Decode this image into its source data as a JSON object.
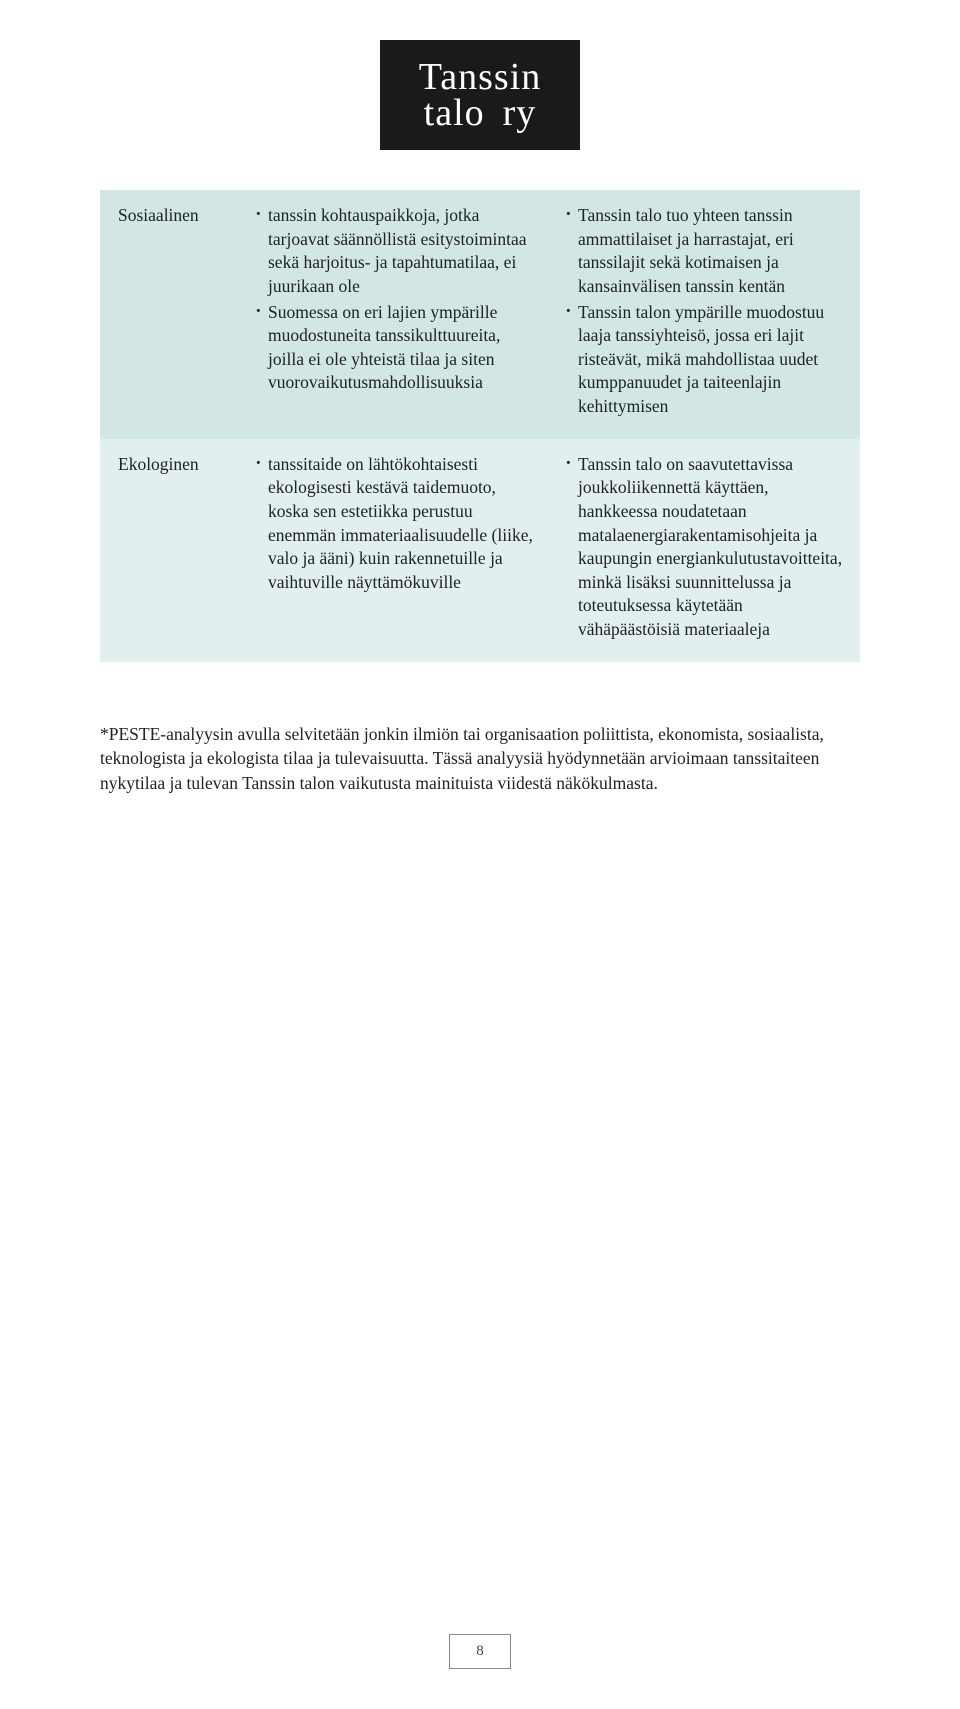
{
  "colors": {
    "logo_bg": "#1a1a1a",
    "logo_text": "#ffffff",
    "row_a_bg": "#d2e6e6",
    "row_b_bg": "#e2efef",
    "body_text": "#222222",
    "page_bg": "#ffffff",
    "pagenum_border": "#888888"
  },
  "typography": {
    "body_font": "Georgia, serif",
    "body_size_pt": 13,
    "logo_size_pt": 28
  },
  "logo": {
    "line1": "Tanssin",
    "line2_left": "talo",
    "line2_right": "ry"
  },
  "table": {
    "rows": [
      {
        "label": "Sosiaalinen",
        "col2": [
          "tanssin kohtauspaikkoja, jotka tarjoavat säännöllistä esitystoimintaa sekä harjoitus- ja tapahtumatilaa, ei juurikaan ole",
          "Suomessa on eri lajien ympärille muodostuneita tanssikulttuureita, joilla ei ole yhteistä tilaa ja siten vuorovaikutusmahdollisuuksia"
        ],
        "col3": [
          "Tanssin talo tuo yhteen tanssin ammattilaiset ja harrastajat, eri tanssilajit sekä kotimaisen ja kansainvälisen tanssin kentän",
          "Tanssin talon ympärille muodostuu laaja tanssiyhteisö, jossa eri lajit risteävät, mikä mahdollistaa uudet kumppanuudet ja taiteenlajin kehittymisen"
        ]
      },
      {
        "label": "Ekologinen",
        "col2": [
          "tanssitaide on lähtökohtaisesti ekologisesti kestävä taidemuoto, koska sen estetiikka perustuu enemmän immateriaalisuudelle (liike, valo ja ääni) kuin rakennetuille ja vaihtuville näyttämökuville"
        ],
        "col3": [
          "Tanssin talo on saavutettavissa joukkoliikennettä käyttäen, hankkeessa noudatetaan matalaenergiarakentamisohjeita ja kaupungin energiankulutustavoitteita, minkä lisäksi suunnittelussa ja toteutuksessa käytetään vähäpäästöisiä materiaaleja"
        ]
      }
    ]
  },
  "footnote": "*PESTE-analyysin avulla selvitetään jonkin ilmiön tai organisaation poliittista, ekonomista, sosiaalista, teknologista ja ekologista tilaa ja tulevaisuutta. Tässä analyysiä hyödynnetään arvioimaan tanssitaiteen nykytilaa ja tulevan Tanssin talon vaikutusta mainituista viidestä näkökulmasta.",
  "page_number": "8"
}
